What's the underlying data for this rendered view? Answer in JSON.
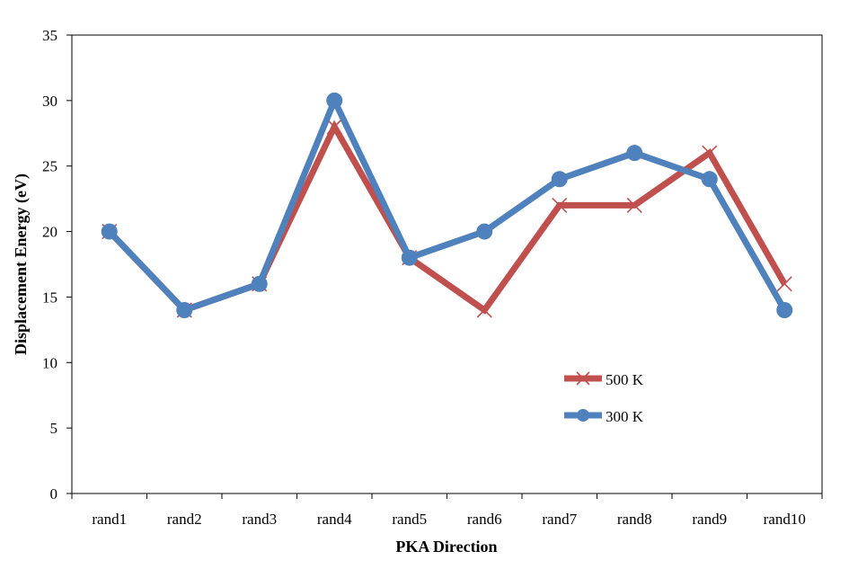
{
  "chart_data": {
    "type": "line",
    "title": "",
    "xlabel": "PKA Direction",
    "ylabel": "Displacement Energy (eV)",
    "categories": [
      "rand1",
      "rand2",
      "rand3",
      "rand4",
      "rand5",
      "rand6",
      "rand7",
      "rand8",
      "rand9",
      "rand10"
    ],
    "ylim": [
      0,
      35
    ],
    "yticks": [
      0,
      5,
      10,
      15,
      20,
      25,
      30,
      35
    ],
    "grid": false,
    "legend_position": "lower-right",
    "series": [
      {
        "name": "500 K",
        "color": "#c0504d",
        "marker": "x",
        "values": [
          20,
          14,
          16,
          28,
          18,
          14,
          22,
          22,
          26,
          16
        ]
      },
      {
        "name": "300 K",
        "color": "#4f81bd",
        "marker": "circle",
        "values": [
          20,
          14,
          16,
          30,
          18,
          20,
          24,
          26,
          24,
          14
        ]
      }
    ]
  }
}
